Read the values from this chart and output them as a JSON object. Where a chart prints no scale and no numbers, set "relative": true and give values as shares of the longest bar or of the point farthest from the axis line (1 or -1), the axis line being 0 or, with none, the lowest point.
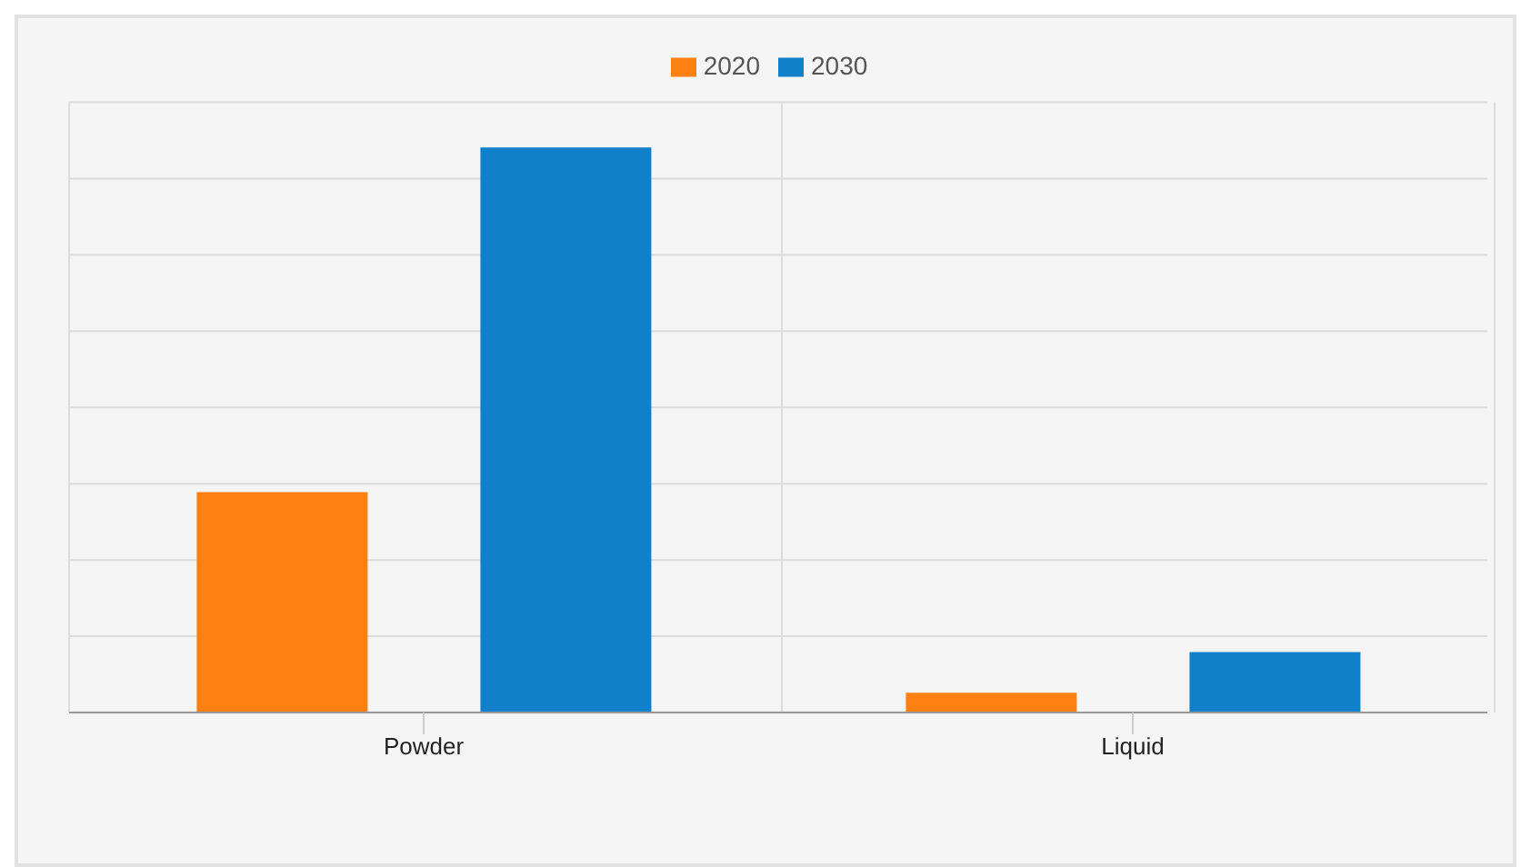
{
  "chart_data": {
    "type": "bar",
    "relative": true,
    "categories": [
      "Powder",
      "Liquid"
    ],
    "series": [
      {
        "name": "2020",
        "color": "#fd8112",
        "values": [
          0.39,
          0.035
        ]
      },
      {
        "name": "2030",
        "color": "#0f80c9",
        "values": [
          1,
          0.107
        ]
      }
    ],
    "grid": true,
    "legend": "top"
  }
}
